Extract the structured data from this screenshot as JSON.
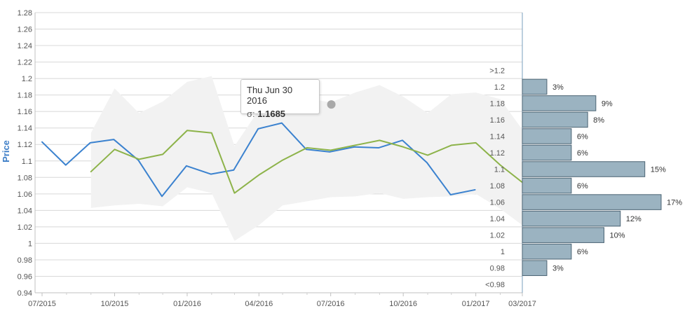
{
  "chart_data": {
    "type": "line",
    "ylabel": "Price",
    "ylim": [
      0.94,
      1.28
    ],
    "y_ticks": [
      "0.94",
      "0.96",
      "0.98",
      "1",
      "1.02",
      "1.04",
      "1.06",
      "1.08",
      "1.1",
      "1.12",
      "1.14",
      "1.16",
      "1.18",
      "1.2",
      "1.22",
      "1.24",
      "1.26",
      "1.28"
    ],
    "x_tick_labels": [
      "07/2015",
      "10/2015",
      "01/2016",
      "04/2016",
      "07/2016",
      "10/2016",
      "01/2017",
      "03/2017"
    ],
    "x_tick_dates": [
      "2015-07-01",
      "2015-10-01",
      "2016-01-01",
      "2016-04-01",
      "2016-07-01",
      "2016-10-01",
      "2017-01-01",
      "2017-03-01"
    ],
    "xlim": [
      "2015-07-01",
      "2017-03-01"
    ],
    "grid": true,
    "series": [
      {
        "color": "#3b82cf",
        "x": [
          "2015-07-01",
          "2015-07-31",
          "2015-08-31",
          "2015-09-30",
          "2015-10-31",
          "2015-11-30",
          "2015-12-31",
          "2016-01-31",
          "2016-02-29",
          "2016-03-31",
          "2016-04-30",
          "2016-05-31",
          "2016-06-30",
          "2016-07-31",
          "2016-08-31",
          "2016-09-30",
          "2016-10-31",
          "2016-11-30",
          "2016-12-31"
        ],
        "values": [
          1.123,
          1.095,
          1.122,
          1.126,
          1.101,
          1.057,
          1.094,
          1.084,
          1.089,
          1.139,
          1.146,
          1.114,
          1.111,
          1.117,
          1.116,
          1.125,
          1.098,
          1.059,
          1.065
        ]
      },
      {
        "color": "#8db34a",
        "x": [
          "2015-09-01",
          "2015-10-01",
          "2015-11-01",
          "2015-12-01",
          "2016-01-01",
          "2016-02-01",
          "2016-03-01",
          "2016-04-01",
          "2016-05-01",
          "2016-06-01",
          "2016-07-01",
          "2016-08-01",
          "2016-09-01",
          "2016-10-01",
          "2016-11-01",
          "2016-12-01",
          "2017-01-01",
          "2017-02-01",
          "2017-03-01"
        ],
        "values": [
          1.087,
          1.114,
          1.102,
          1.108,
          1.137,
          1.134,
          1.061,
          1.083,
          1.101,
          1.116,
          1.113,
          1.119,
          1.125,
          1.117,
          1.107,
          1.119,
          1.122,
          1.095,
          1.074
        ]
      }
    ],
    "range_band": {
      "color": "#f2f2f2",
      "x": [
        "2015-09-01",
        "2015-10-01",
        "2015-11-01",
        "2015-12-01",
        "2016-01-01",
        "2016-02-01",
        "2016-03-01",
        "2016-04-01",
        "2016-05-01",
        "2016-06-01",
        "2016-07-01",
        "2016-08-01",
        "2016-09-01",
        "2016-10-01",
        "2016-11-01",
        "2016-12-01",
        "2017-01-01",
        "2017-02-01",
        "2017-03-01"
      ],
      "upper": [
        1.134,
        1.188,
        1.158,
        1.172,
        1.196,
        1.203,
        1.118,
        1.162,
        1.178,
        1.176,
        1.171,
        1.183,
        1.192,
        1.178,
        1.158,
        1.181,
        1.183,
        1.175,
        1.138
      ],
      "lower": [
        1.043,
        1.046,
        1.048,
        1.045,
        1.068,
        1.061,
        1.003,
        1.022,
        1.046,
        1.051,
        1.056,
        1.057,
        1.061,
        1.054,
        1.056,
        1.057,
        1.06,
        1.042,
        1.022
      ]
    },
    "distribution": {
      "color": "#9bb3c1",
      "bins": [
        ">1.2",
        "1.2",
        "1.18",
        "1.16",
        "1.14",
        "1.12",
        "1.1",
        "1.08",
        "1.06",
        "1.04",
        "1.02",
        "1",
        "0.98",
        "<0.98"
      ],
      "percents": [
        0,
        3,
        9,
        8,
        6,
        6,
        15,
        6,
        17,
        12,
        10,
        6,
        3,
        0
      ],
      "labels": [
        "",
        "3%",
        "9%",
        "8%",
        "6%",
        "6%",
        "15%",
        "6%",
        "17%",
        "12%",
        "10%",
        "6%",
        "3%",
        ""
      ]
    },
    "tooltip": {
      "date": "Thu Jun 30 2016",
      "key": "σ:",
      "value": "1.1685",
      "x": "2016-06-30",
      "y": 1.1685
    }
  }
}
